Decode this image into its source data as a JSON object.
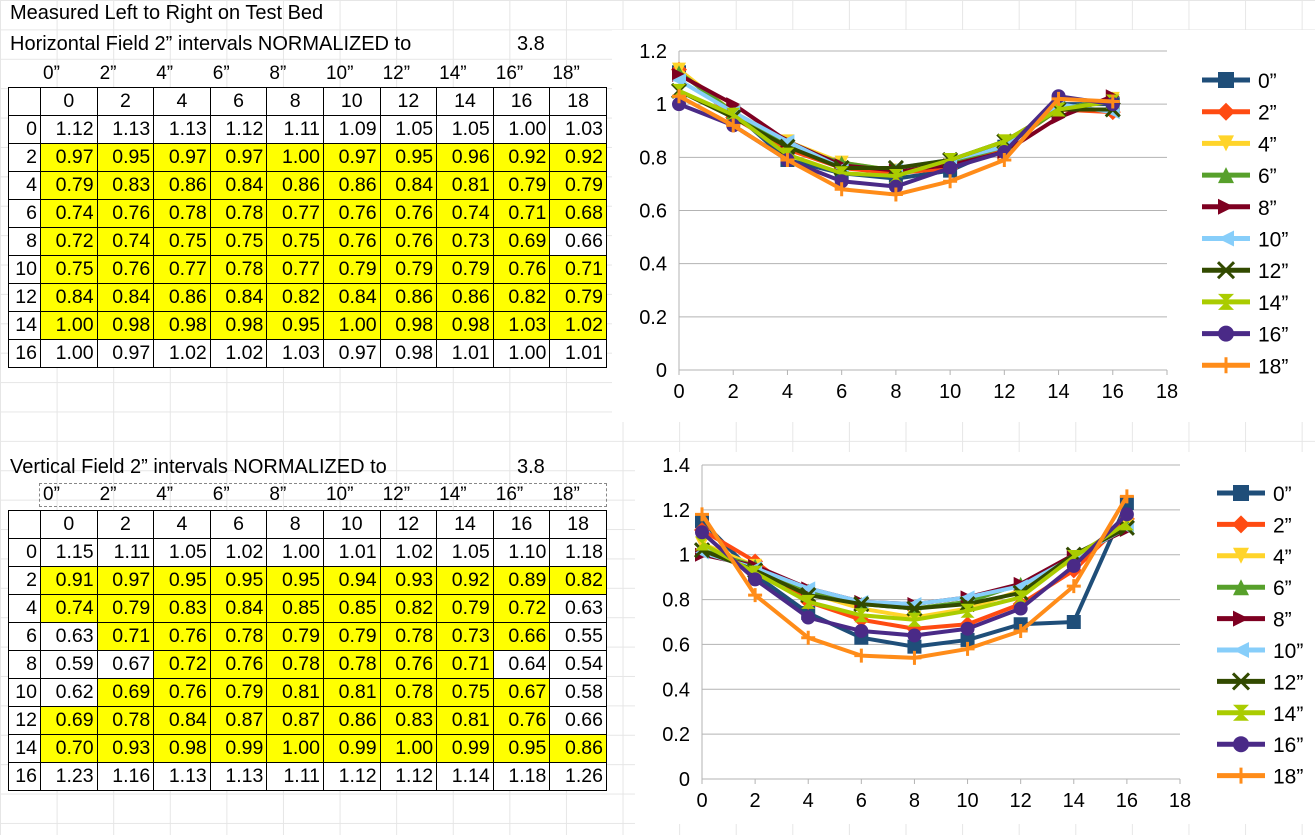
{
  "sheet_title": "Measured Left to Right on Test Bed",
  "horizontal": {
    "title": "Horizontal Field 2” intervals NORMALIZED to",
    "norm_value": "3.8",
    "header_inches": [
      "0”",
      "2”",
      "4”",
      "6”",
      "8”",
      "10”",
      "12”",
      "14”",
      "16”",
      "18”"
    ],
    "columns": [
      "0",
      "2",
      "4",
      "6",
      "8",
      "10",
      "12",
      "14",
      "16",
      "18"
    ],
    "row_labels": [
      "0",
      "2",
      "4",
      "6",
      "8",
      "10",
      "12",
      "14",
      "16"
    ],
    "rows": [
      [
        "1.12",
        "1.13",
        "1.13",
        "1.12",
        "1.11",
        "1.09",
        "1.05",
        "1.05",
        "1.00",
        "1.03"
      ],
      [
        "0.97",
        "0.95",
        "0.97",
        "0.97",
        "1.00",
        "0.97",
        "0.95",
        "0.96",
        "0.92",
        "0.92"
      ],
      [
        "0.79",
        "0.83",
        "0.86",
        "0.84",
        "0.86",
        "0.86",
        "0.84",
        "0.81",
        "0.79",
        "0.79"
      ],
      [
        "0.74",
        "0.76",
        "0.78",
        "0.78",
        "0.77",
        "0.76",
        "0.76",
        "0.74",
        "0.71",
        "0.68"
      ],
      [
        "0.72",
        "0.74",
        "0.75",
        "0.75",
        "0.75",
        "0.76",
        "0.76",
        "0.73",
        "0.69",
        "0.66"
      ],
      [
        "0.75",
        "0.76",
        "0.77",
        "0.78",
        "0.77",
        "0.79",
        "0.79",
        "0.79",
        "0.76",
        "0.71"
      ],
      [
        "0.84",
        "0.84",
        "0.86",
        "0.84",
        "0.82",
        "0.84",
        "0.86",
        "0.86",
        "0.82",
        "0.79"
      ],
      [
        "1.00",
        "0.98",
        "0.98",
        "0.98",
        "0.95",
        "1.00",
        "0.98",
        "0.98",
        "1.03",
        "1.02"
      ],
      [
        "1.00",
        "0.97",
        "1.02",
        "1.02",
        "1.03",
        "0.97",
        "0.98",
        "1.01",
        "1.00",
        "1.01"
      ]
    ],
    "highlight": [
      [
        0,
        0,
        0,
        0,
        0,
        0,
        0,
        0,
        0,
        0
      ],
      [
        1,
        1,
        1,
        1,
        1,
        1,
        1,
        1,
        1,
        1
      ],
      [
        1,
        1,
        1,
        1,
        1,
        1,
        1,
        1,
        1,
        1
      ],
      [
        1,
        1,
        1,
        1,
        1,
        1,
        1,
        1,
        1,
        1
      ],
      [
        1,
        1,
        1,
        1,
        1,
        1,
        1,
        1,
        1,
        0
      ],
      [
        1,
        1,
        1,
        1,
        1,
        1,
        1,
        1,
        1,
        1
      ],
      [
        1,
        1,
        1,
        1,
        1,
        1,
        1,
        1,
        1,
        1
      ],
      [
        1,
        1,
        1,
        1,
        1,
        1,
        1,
        1,
        1,
        1
      ],
      [
        0,
        0,
        0,
        0,
        0,
        0,
        0,
        0,
        0,
        0
      ]
    ]
  },
  "vertical": {
    "title": "Vertical Field 2” intervals NORMALIZED to",
    "norm_value": "3.8",
    "header_inches": [
      "0”",
      "2”",
      "4”",
      "6”",
      "8”",
      "10”",
      "12”",
      "14”",
      "16”",
      "18”"
    ],
    "columns": [
      "0",
      "2",
      "4",
      "6",
      "8",
      "10",
      "12",
      "14",
      "16",
      "18"
    ],
    "row_labels": [
      "0",
      "2",
      "4",
      "6",
      "8",
      "10",
      "12",
      "14",
      "16"
    ],
    "rows": [
      [
        "1.15",
        "1.11",
        "1.05",
        "1.02",
        "1.00",
        "1.01",
        "1.02",
        "1.05",
        "1.10",
        "1.18"
      ],
      [
        "0.91",
        "0.97",
        "0.95",
        "0.95",
        "0.95",
        "0.94",
        "0.93",
        "0.92",
        "0.89",
        "0.82"
      ],
      [
        "0.74",
        "0.79",
        "0.83",
        "0.84",
        "0.85",
        "0.85",
        "0.82",
        "0.79",
        "0.72",
        "0.63"
      ],
      [
        "0.63",
        "0.71",
        "0.76",
        "0.78",
        "0.79",
        "0.79",
        "0.78",
        "0.73",
        "0.66",
        "0.55"
      ],
      [
        "0.59",
        "0.67",
        "0.72",
        "0.76",
        "0.78",
        "0.78",
        "0.76",
        "0.71",
        "0.64",
        "0.54"
      ],
      [
        "0.62",
        "0.69",
        "0.76",
        "0.79",
        "0.81",
        "0.81",
        "0.78",
        "0.75",
        "0.67",
        "0.58"
      ],
      [
        "0.69",
        "0.78",
        "0.84",
        "0.87",
        "0.87",
        "0.86",
        "0.83",
        "0.81",
        "0.76",
        "0.66"
      ],
      [
        "0.70",
        "0.93",
        "0.98",
        "0.99",
        "1.00",
        "0.99",
        "1.00",
        "0.99",
        "0.95",
        "0.86"
      ],
      [
        "1.23",
        "1.16",
        "1.13",
        "1.13",
        "1.11",
        "1.12",
        "1.12",
        "1.14",
        "1.18",
        "1.26"
      ]
    ],
    "highlight": [
      [
        0,
        0,
        0,
        0,
        0,
        0,
        0,
        0,
        0,
        0
      ],
      [
        1,
        1,
        1,
        1,
        1,
        1,
        1,
        1,
        1,
        1
      ],
      [
        1,
        1,
        1,
        1,
        1,
        1,
        1,
        1,
        1,
        0
      ],
      [
        0,
        1,
        1,
        1,
        1,
        1,
        1,
        1,
        1,
        0
      ],
      [
        0,
        0,
        1,
        1,
        1,
        1,
        1,
        1,
        0,
        0
      ],
      [
        0,
        1,
        1,
        1,
        1,
        1,
        1,
        1,
        1,
        0
      ],
      [
        1,
        1,
        1,
        1,
        1,
        1,
        1,
        1,
        1,
        0
      ],
      [
        1,
        1,
        1,
        1,
        1,
        1,
        1,
        1,
        1,
        1
      ],
      [
        0,
        0,
        0,
        0,
        0,
        0,
        0,
        0,
        0,
        0
      ]
    ]
  },
  "colors": {
    "highlight": "#ffff00",
    "series": [
      "#1f4e79",
      "#ff4b12",
      "#ffd42a",
      "#57a02b",
      "#7e0021",
      "#87cefa",
      "#324a00",
      "#aacc00",
      "#4a2a87",
      "#ff8c19"
    ],
    "markers": [
      "square",
      "diamond",
      "triangle-down",
      "triangle-up",
      "triangle-right",
      "triangle-left",
      "x",
      "hourglass",
      "circle",
      "plus"
    ]
  },
  "chart_data": [
    {
      "type": "line",
      "title": "",
      "x": [
        0,
        2,
        4,
        6,
        8,
        10,
        12,
        14,
        16
      ],
      "xlim": [
        0,
        18
      ],
      "ylim": [
        0,
        1.2
      ],
      "xticks": [
        "0",
        "2",
        "4",
        "6",
        "8",
        "10",
        "12",
        "14",
        "16",
        "18"
      ],
      "yticks": [
        "0",
        "0.2",
        "0.4",
        "0.6",
        "0.8",
        "1",
        "1.2"
      ],
      "legend_position": "right",
      "series": [
        {
          "name": "0”",
          "values": [
            1.12,
            0.97,
            0.79,
            0.74,
            0.72,
            0.75,
            0.84,
            1.0,
            1.0
          ]
        },
        {
          "name": "2”",
          "values": [
            1.13,
            0.95,
            0.83,
            0.76,
            0.74,
            0.76,
            0.84,
            0.98,
            0.97
          ]
        },
        {
          "name": "4”",
          "values": [
            1.13,
            0.97,
            0.86,
            0.78,
            0.75,
            0.77,
            0.86,
            0.98,
            1.02
          ]
        },
        {
          "name": "6”",
          "values": [
            1.12,
            0.97,
            0.84,
            0.78,
            0.75,
            0.78,
            0.84,
            0.98,
            1.02
          ]
        },
        {
          "name": "8”",
          "values": [
            1.11,
            1.0,
            0.86,
            0.77,
            0.75,
            0.77,
            0.82,
            0.95,
            1.03
          ]
        },
        {
          "name": "10”",
          "values": [
            1.09,
            0.97,
            0.86,
            0.76,
            0.76,
            0.79,
            0.84,
            1.0,
            0.97
          ]
        },
        {
          "name": "12”",
          "values": [
            1.05,
            0.95,
            0.84,
            0.76,
            0.76,
            0.79,
            0.86,
            0.98,
            0.98
          ]
        },
        {
          "name": "14”",
          "values": [
            1.05,
            0.96,
            0.81,
            0.74,
            0.73,
            0.79,
            0.86,
            0.98,
            1.01
          ]
        },
        {
          "name": "16”",
          "values": [
            1.0,
            0.92,
            0.79,
            0.71,
            0.69,
            0.76,
            0.82,
            1.03,
            1.0
          ]
        },
        {
          "name": "18”",
          "values": [
            1.03,
            0.92,
            0.79,
            0.68,
            0.66,
            0.71,
            0.79,
            1.02,
            1.01
          ]
        }
      ]
    },
    {
      "type": "line",
      "title": "",
      "x": [
        0,
        2,
        4,
        6,
        8,
        10,
        12,
        14,
        16
      ],
      "xlim": [
        0,
        18
      ],
      "ylim": [
        0,
        1.4
      ],
      "xticks": [
        "0",
        "2",
        "4",
        "6",
        "8",
        "10",
        "12",
        "14",
        "16",
        "18"
      ],
      "yticks": [
        "0",
        "0.2",
        "0.4",
        "0.6",
        "0.8",
        "1",
        "1.2",
        "1.4"
      ],
      "legend_position": "right",
      "series": [
        {
          "name": "0”",
          "values": [
            1.15,
            0.91,
            0.74,
            0.63,
            0.59,
            0.62,
            0.69,
            0.7,
            1.23
          ]
        },
        {
          "name": "2”",
          "values": [
            1.11,
            0.97,
            0.79,
            0.71,
            0.67,
            0.69,
            0.78,
            0.93,
            1.16
          ]
        },
        {
          "name": "4”",
          "values": [
            1.05,
            0.95,
            0.83,
            0.76,
            0.72,
            0.76,
            0.84,
            0.98,
            1.13
          ]
        },
        {
          "name": "6”",
          "values": [
            1.02,
            0.95,
            0.84,
            0.78,
            0.76,
            0.79,
            0.87,
            0.99,
            1.13
          ]
        },
        {
          "name": "8”",
          "values": [
            1.0,
            0.95,
            0.85,
            0.79,
            0.78,
            0.81,
            0.87,
            1.0,
            1.11
          ]
        },
        {
          "name": "10”",
          "values": [
            1.01,
            0.94,
            0.85,
            0.79,
            0.78,
            0.81,
            0.86,
            0.99,
            1.12
          ]
        },
        {
          "name": "12”",
          "values": [
            1.02,
            0.93,
            0.82,
            0.78,
            0.76,
            0.78,
            0.83,
            1.0,
            1.12
          ]
        },
        {
          "name": "14”",
          "values": [
            1.05,
            0.92,
            0.79,
            0.73,
            0.71,
            0.75,
            0.81,
            0.99,
            1.14
          ]
        },
        {
          "name": "16”",
          "values": [
            1.1,
            0.89,
            0.72,
            0.66,
            0.64,
            0.67,
            0.76,
            0.95,
            1.18
          ]
        },
        {
          "name": "18”",
          "values": [
            1.18,
            0.82,
            0.63,
            0.55,
            0.54,
            0.58,
            0.66,
            0.86,
            1.26
          ]
        }
      ]
    }
  ]
}
